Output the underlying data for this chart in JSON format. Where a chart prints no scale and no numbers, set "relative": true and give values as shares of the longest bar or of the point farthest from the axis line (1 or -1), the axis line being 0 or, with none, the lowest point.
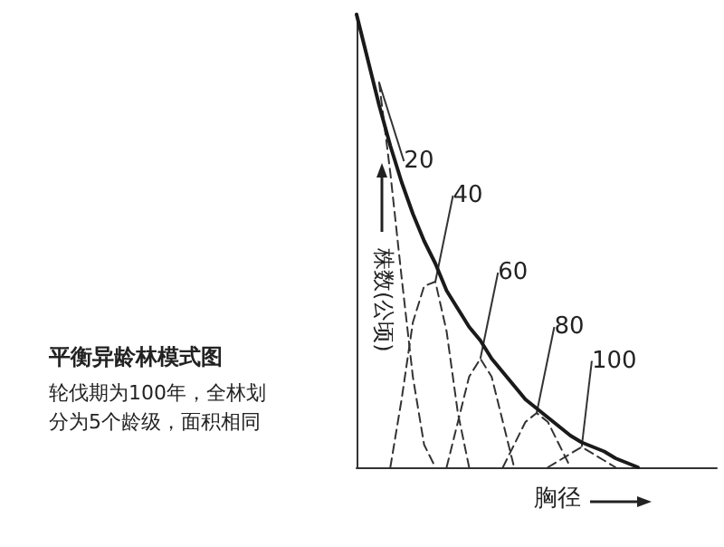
{
  "chart_data": {
    "type": "line",
    "relative": true,
    "title": "平衡异龄林模式图",
    "subtitle": "轮伐期为100年，全林划分为5个龄级，面积相同",
    "xlabel": "胸径",
    "ylabel": "株数(公顷)",
    "legend": false,
    "grid": false,
    "categories": [
      null,
      null,
      null,
      null,
      null,
      null,
      null,
      null,
      null,
      null,
      null,
      null,
      null,
      null,
      null,
      null,
      null,
      null,
      null,
      null,
      null,
      null,
      null,
      null,
      null,
      null,
      null,
      null,
      null,
      null,
      null,
      null,
      null
    ],
    "series": [
      {
        "color": "#1a1a1a",
        "line_style": "solid",
        "values": [
          1.0,
          0.9,
          0.8,
          0.71,
          0.63,
          0.56,
          0.5,
          0.45,
          0.39,
          0.35,
          0.31,
          0.28,
          0.24,
          0.21,
          0.18,
          0.15,
          0.13,
          0.11,
          0.09,
          0.07,
          0.055,
          0.045,
          0.035,
          0.02,
          0.01,
          0,
          null,
          null,
          null,
          null,
          null,
          null,
          null
        ]
      },
      {
        "name": "20",
        "color": "#333333",
        "line_style": "dashed",
        "values": [
          null,
          null,
          0.85,
          0.65,
          0.42,
          0.2,
          0.05,
          0,
          null,
          null,
          null,
          null,
          null,
          null,
          null,
          null,
          null,
          null,
          null,
          null,
          null,
          null,
          null,
          null,
          null,
          null,
          null,
          null,
          null,
          null,
          null,
          null,
          null
        ]
      },
      {
        "name": "40",
        "color": "#333333",
        "line_style": "dashed",
        "values": [
          null,
          null,
          null,
          0,
          0.15,
          0.32,
          0.4,
          0.41,
          0.3,
          0.12,
          0,
          null,
          null,
          null,
          null,
          null,
          null,
          null,
          null,
          null,
          null,
          null,
          null,
          null,
          null,
          null,
          null,
          null,
          null,
          null,
          null,
          null,
          null
        ]
      },
      {
        "name": "60",
        "color": "#333333",
        "line_style": "dashed",
        "values": [
          null,
          null,
          null,
          null,
          null,
          null,
          null,
          null,
          0,
          0.1,
          0.2,
          0.24,
          0.2,
          0.1,
          0,
          null,
          null,
          null,
          null,
          null,
          null,
          null,
          null,
          null,
          null,
          null,
          null,
          null,
          null,
          null,
          null,
          null,
          null
        ]
      },
      {
        "name": "80",
        "color": "#333333",
        "line_style": "dashed",
        "values": [
          null,
          null,
          null,
          null,
          null,
          null,
          null,
          null,
          null,
          null,
          null,
          null,
          null,
          0,
          0.05,
          0.1,
          0.12,
          0.1,
          0.05,
          0,
          null,
          null,
          null,
          null,
          null,
          null,
          null,
          null,
          null,
          null,
          null,
          null,
          null
        ]
      },
      {
        "name": "100",
        "color": "#333333",
        "line_style": "dashed",
        "values": [
          null,
          null,
          null,
          null,
          null,
          null,
          null,
          null,
          null,
          null,
          null,
          null,
          null,
          null,
          null,
          null,
          null,
          0,
          0.015,
          0.03,
          0.045,
          0.03,
          0.015,
          0,
          null,
          null,
          null,
          null,
          null,
          null,
          null,
          null,
          null
        ]
      }
    ]
  }
}
